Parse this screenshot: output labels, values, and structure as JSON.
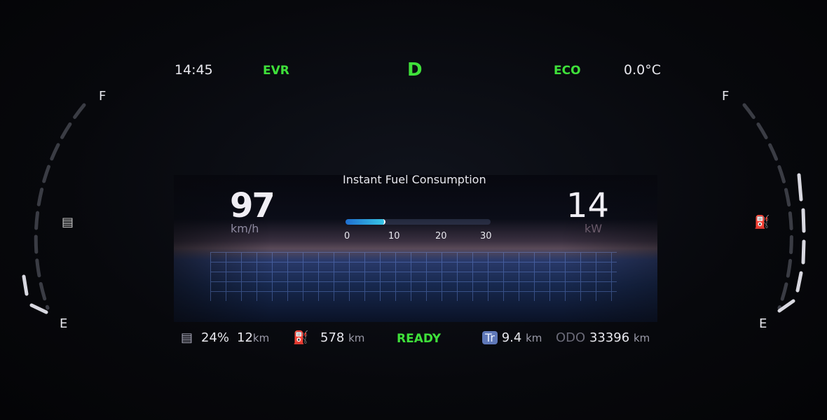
{
  "header": {
    "time": "14:45",
    "mode": "EVR",
    "gear": "D",
    "drive_mode": "ECO",
    "temperature": "0.0°C"
  },
  "speed": {
    "value": "97",
    "unit": "km/h"
  },
  "power": {
    "value": "14",
    "unit": "kW"
  },
  "fuel_consumption": {
    "title": "Instant Fuel Consumption",
    "value": 8,
    "max": 30,
    "ticks": [
      "0",
      "10",
      "20",
      "30"
    ]
  },
  "left_gauge": {
    "full_label": "F",
    "empty_label": "E",
    "icon": "battery-icon"
  },
  "right_gauge": {
    "full_label": "F",
    "empty_label": "E",
    "icon": "fuel-pump-icon"
  },
  "status": {
    "battery_percent": "24%",
    "electric_range": "12",
    "electric_range_unit": "km",
    "fuel_range": "578",
    "fuel_range_unit": "km",
    "ready": "READY",
    "trip_label": "Tr",
    "trip": "9.4",
    "trip_unit": "km",
    "odo_label": "ODO",
    "odo": "33396",
    "odo_unit": "km"
  },
  "colors": {
    "accent_green": "#3fe03a",
    "bar_blue": "#1f6fd0",
    "trip_badge": "#5f78b8"
  }
}
